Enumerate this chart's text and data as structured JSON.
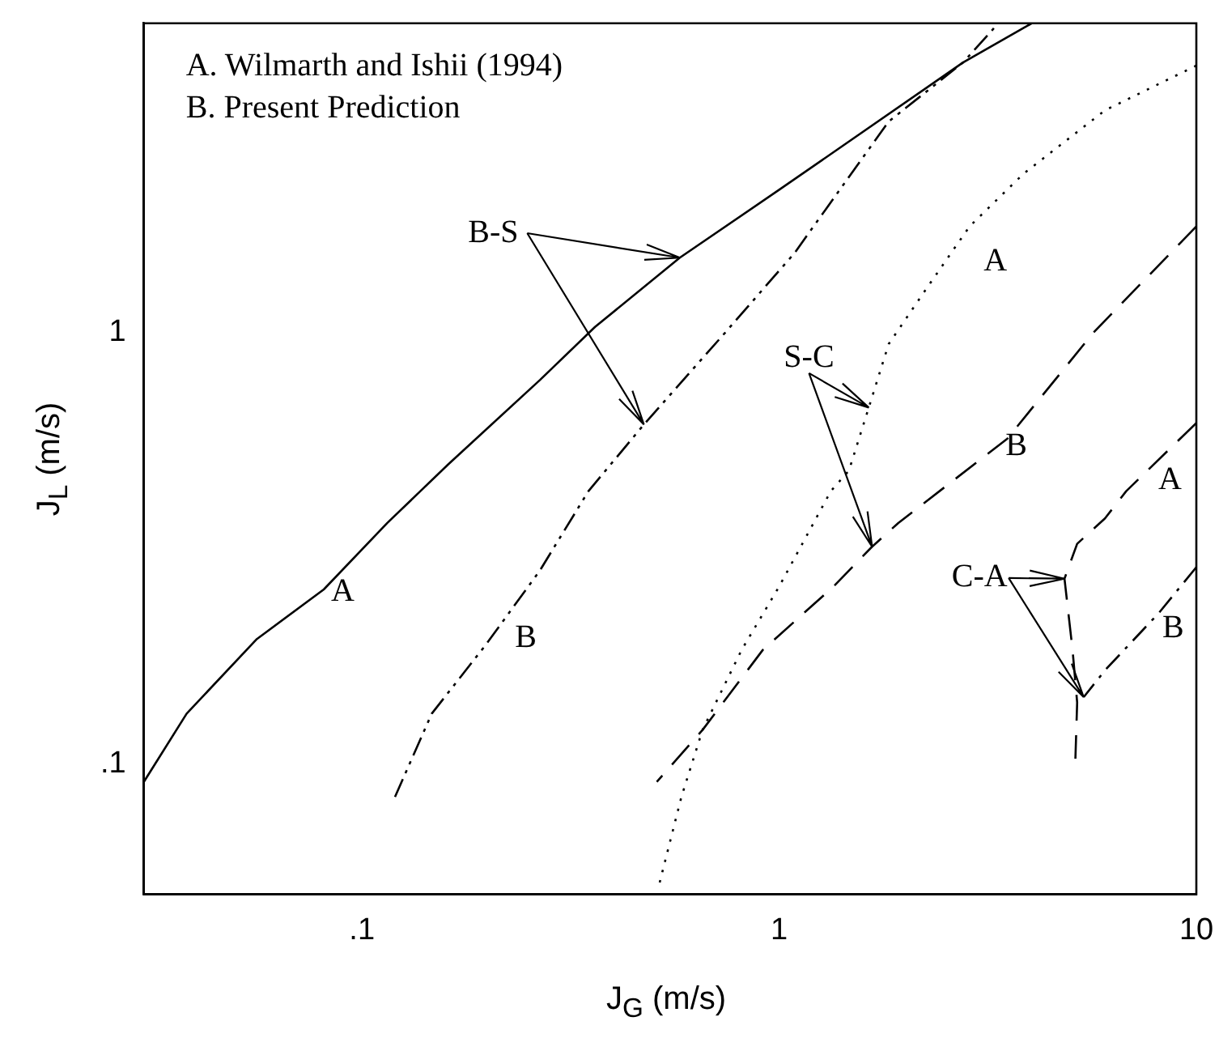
{
  "chart_data": {
    "type": "line",
    "xlabel": "J$_{G}$ (m/s)",
    "ylabel": "J$_{L}$ (m/s)",
    "log": "xy",
    "grid": false,
    "legend": false,
    "marker": "none",
    "xlim": [
      0.03,
      10
    ],
    "ylim": [
      0.05,
      5.2
    ],
    "xticks": [
      {
        "value": 0.1,
        "label": ".1"
      },
      1,
      10
    ],
    "yticks": [
      {
        "value": 0.1,
        "label": ".1"
      },
      1
    ],
    "series": [
      {
        "color": "#000000",
        "line_style": "solid",
        "x": [
          0.03,
          0.038,
          0.056,
          0.081,
          0.115,
          0.161,
          0.267,
          0.362,
          0.578,
          1.0,
          2.76,
          4.03
        ],
        "values": [
          0.091,
          0.131,
          0.195,
          0.254,
          0.362,
          0.495,
          0.776,
          1.03,
          1.49,
          2.14,
          4.22,
          5.2
        ]
      },
      {
        "color": "#000000",
        "line_style": "dashdotdot",
        "x": [
          0.12,
          0.147,
          0.198,
          0.267,
          0.349,
          0.474,
          0.743,
          1.09,
          1.83,
          2.76,
          3.31
        ],
        "values": [
          0.084,
          0.131,
          0.189,
          0.281,
          0.429,
          0.612,
          1.0,
          1.53,
          3.08,
          4.22,
          5.13
        ]
      },
      {
        "color": "#000000",
        "line_style": "dotted",
        "x": [
          10,
          6.04,
          3.85,
          2.86,
          2.25,
          1.83,
          1.64,
          1.47,
          1.33,
          1.0,
          0.813,
          0.655,
          0.583,
          0.514
        ],
        "values": [
          4.15,
          3.27,
          2.33,
          1.76,
          1.26,
          0.94,
          0.67,
          0.479,
          0.429,
          0.258,
          0.184,
          0.12,
          0.084,
          0.052
        ]
      },
      {
        "color": "#000000",
        "line_style": "dashed",
        "x": [
          10,
          5.67,
          3.52,
          1.93,
          1.67,
          1.35,
          0.914,
          0.655,
          0.509
        ],
        "values": [
          1.76,
          1.0,
          0.567,
          0.362,
          0.319,
          0.258,
          0.184,
          0.12,
          0.091
        ]
      },
      {
        "color": "#000000",
        "line_style": "dashed",
        "x": [
          10,
          6.79,
          6.04,
          5.18,
          4.83,
          5.05,
          5.18,
          5.13
        ],
        "values": [
          0.617,
          0.429,
          0.371,
          0.324,
          0.269,
          0.184,
          0.139,
          0.103
        ]
      },
      {
        "color": "#000000",
        "line_style": "dashdot",
        "x": [
          10,
          8.13,
          6.04,
          5.37
        ],
        "values": [
          0.286,
          0.224,
          0.165,
          0.143
        ]
      }
    ],
    "annotations": [
      "A. Wilmarth and Ishii (1994)",
      "B. Present Prediction",
      "A",
      "B",
      "A",
      "B",
      "A",
      "B",
      {
        "text": "B-S",
        "x": 0.578,
        "y": 1.49
      },
      {
        "text": "S-C",
        "x": 1.64,
        "y": 0.67
      },
      {
        "text": "C-A",
        "x": 4.83,
        "y": 0.269
      }
    ]
  }
}
